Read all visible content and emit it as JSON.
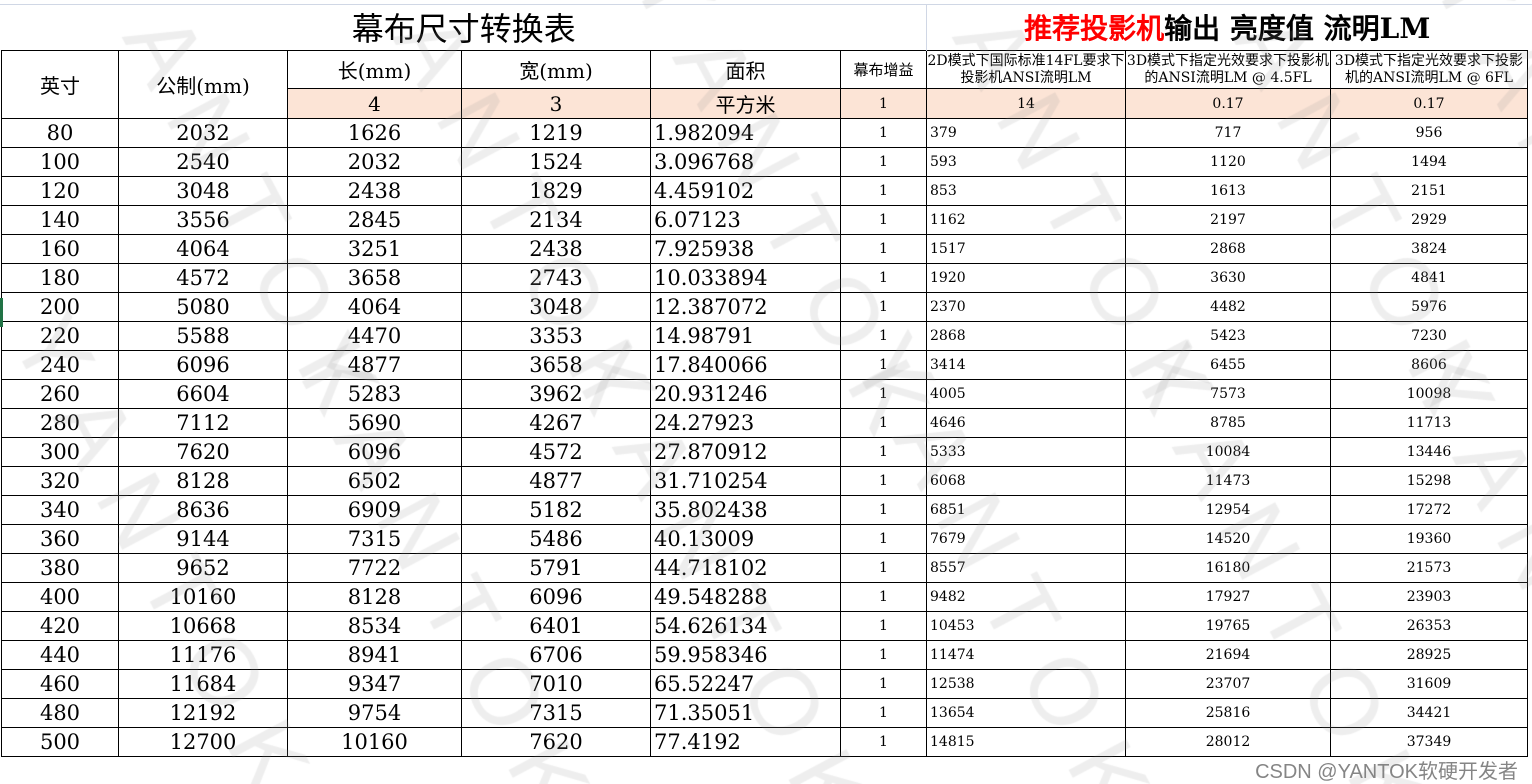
{
  "title": "幕布尺寸转换表",
  "brightness_title": {
    "red": "推荐投影机",
    "black": "输出 亮度值 流明LM"
  },
  "headers": {
    "inch": "英寸",
    "metric": "公制(mm)",
    "length": "长(mm)",
    "width": "宽(mm)",
    "area": "面积",
    "gain": "幕布增益",
    "col2d": "2D模式下国际标准14FL要求下投影机ANSI流明LM",
    "col3d45": "3D模式下指定光效要求下投影机的ANSI流明LM @ 4.5FL",
    "col3d6": "3D模式下指定光效要求下投影机的ANSI流明LM @ 6FL"
  },
  "params": {
    "length": "4",
    "width": "3",
    "area": "平方米",
    "gain": "1",
    "col2d": "14",
    "col3d45": "0.17",
    "col3d6": "0.17"
  },
  "rows": [
    [
      "80",
      "2032",
      "1626",
      "1219",
      "1.982094",
      "1",
      "379",
      "717",
      "956"
    ],
    [
      "100",
      "2540",
      "2032",
      "1524",
      "3.096768",
      "1",
      "593",
      "1120",
      "1494"
    ],
    [
      "120",
      "3048",
      "2438",
      "1829",
      "4.459102",
      "1",
      "853",
      "1613",
      "2151"
    ],
    [
      "140",
      "3556",
      "2845",
      "2134",
      "6.07123",
      "1",
      "1162",
      "2197",
      "2929"
    ],
    [
      "160",
      "4064",
      "3251",
      "2438",
      "7.925938",
      "1",
      "1517",
      "2868",
      "3824"
    ],
    [
      "180",
      "4572",
      "3658",
      "2743",
      "10.033894",
      "1",
      "1920",
      "3630",
      "4841"
    ],
    [
      "200",
      "5080",
      "4064",
      "3048",
      "12.387072",
      "1",
      "2370",
      "4482",
      "5976"
    ],
    [
      "220",
      "5588",
      "4470",
      "3353",
      "14.98791",
      "1",
      "2868",
      "5423",
      "7230"
    ],
    [
      "240",
      "6096",
      "4877",
      "3658",
      "17.840066",
      "1",
      "3414",
      "6455",
      "8606"
    ],
    [
      "260",
      "6604",
      "5283",
      "3962",
      "20.931246",
      "1",
      "4005",
      "7573",
      "10098"
    ],
    [
      "280",
      "7112",
      "5690",
      "4267",
      "24.27923",
      "1",
      "4646",
      "8785",
      "11713"
    ],
    [
      "300",
      "7620",
      "6096",
      "4572",
      "27.870912",
      "1",
      "5333",
      "10084",
      "13446"
    ],
    [
      "320",
      "8128",
      "6502",
      "4877",
      "31.710254",
      "1",
      "6068",
      "11473",
      "15298"
    ],
    [
      "340",
      "8636",
      "6909",
      "5182",
      "35.802438",
      "1",
      "6851",
      "12954",
      "17272"
    ],
    [
      "360",
      "9144",
      "7315",
      "5486",
      "40.13009",
      "1",
      "7679",
      "14520",
      "19360"
    ],
    [
      "380",
      "9652",
      "7722",
      "5791",
      "44.718102",
      "1",
      "8557",
      "16180",
      "21573"
    ],
    [
      "400",
      "10160",
      "8128",
      "6096",
      "49.548288",
      "1",
      "9482",
      "17927",
      "23903"
    ],
    [
      "420",
      "10668",
      "8534",
      "6401",
      "54.626134",
      "1",
      "10453",
      "19765",
      "26353"
    ],
    [
      "440",
      "11176",
      "8941",
      "6706",
      "59.958346",
      "1",
      "11474",
      "21694",
      "28925"
    ],
    [
      "460",
      "11684",
      "9347",
      "7010",
      "65.52247",
      "1",
      "12538",
      "23707",
      "31609"
    ],
    [
      "480",
      "12192",
      "9754",
      "7315",
      "71.35051",
      "1",
      "13654",
      "25816",
      "34421"
    ],
    [
      "500",
      "12700",
      "10160",
      "7620",
      "77.4192",
      "1",
      "14815",
      "28012",
      "37349"
    ]
  ],
  "watermark": "YANTOK",
  "credit": "CSDN @YANTOK软硬开发者"
}
